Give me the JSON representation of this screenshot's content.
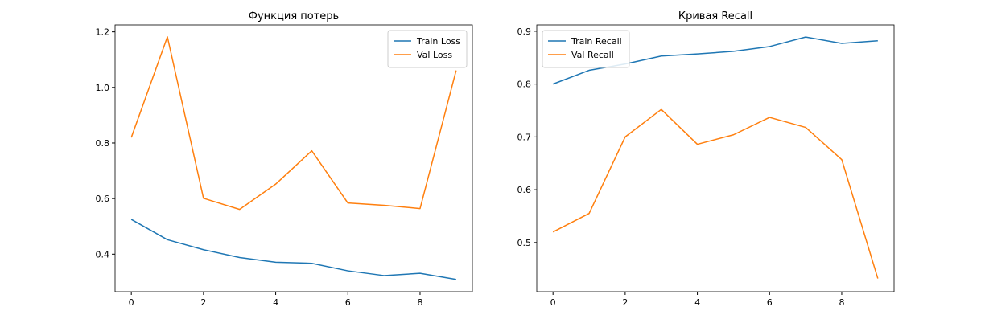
{
  "chart_data": [
    {
      "type": "line",
      "title": "Функция потерь",
      "xlabel": "",
      "ylabel": "",
      "x": [
        0,
        1,
        2,
        3,
        4,
        5,
        6,
        7,
        8,
        9
      ],
      "xlim": [
        -0.45,
        9.45
      ],
      "ylim": [
        0.265,
        1.225
      ],
      "xticks": [
        0,
        2,
        4,
        6,
        8
      ],
      "yticks": [
        0.4,
        0.6,
        0.8,
        1.0,
        1.2
      ],
      "ytick_labels": [
        "0.4",
        "0.6",
        "0.8",
        "1.0",
        "1.2"
      ],
      "legend": "top-right",
      "grid": false,
      "series": [
        {
          "name": "Train Loss",
          "color": "#1f77b4",
          "values": [
            0.525,
            0.452,
            0.416,
            0.388,
            0.371,
            0.367,
            0.34,
            0.323,
            0.331,
            0.309
          ]
        },
        {
          "name": "Val Loss",
          "color": "#ff7f0e",
          "values": [
            0.82,
            1.182,
            0.601,
            0.561,
            0.652,
            0.772,
            0.584,
            0.576,
            0.564,
            1.061
          ]
        }
      ]
    },
    {
      "type": "line",
      "title": "Кривая Recall",
      "xlabel": "",
      "ylabel": "",
      "x": [
        0,
        1,
        2,
        3,
        4,
        5,
        6,
        7,
        8,
        9
      ],
      "xlim": [
        -0.45,
        9.45
      ],
      "ylim": [
        0.407,
        0.912
      ],
      "xticks": [
        0,
        2,
        4,
        6,
        8
      ],
      "yticks": [
        0.5,
        0.6,
        0.7,
        0.8,
        0.9
      ],
      "ytick_labels": [
        "0.5",
        "0.6",
        "0.7",
        "0.8",
        "0.9"
      ],
      "legend": "top-left",
      "grid": false,
      "series": [
        {
          "name": "Train Recall",
          "color": "#1f77b4",
          "values": [
            0.8,
            0.826,
            0.838,
            0.853,
            0.857,
            0.862,
            0.871,
            0.889,
            0.877,
            0.882
          ]
        },
        {
          "name": "Val Recall",
          "color": "#ff7f0e",
          "values": [
            0.52,
            0.555,
            0.7,
            0.752,
            0.686,
            0.704,
            0.737,
            0.718,
            0.657,
            0.432
          ]
        }
      ]
    }
  ]
}
